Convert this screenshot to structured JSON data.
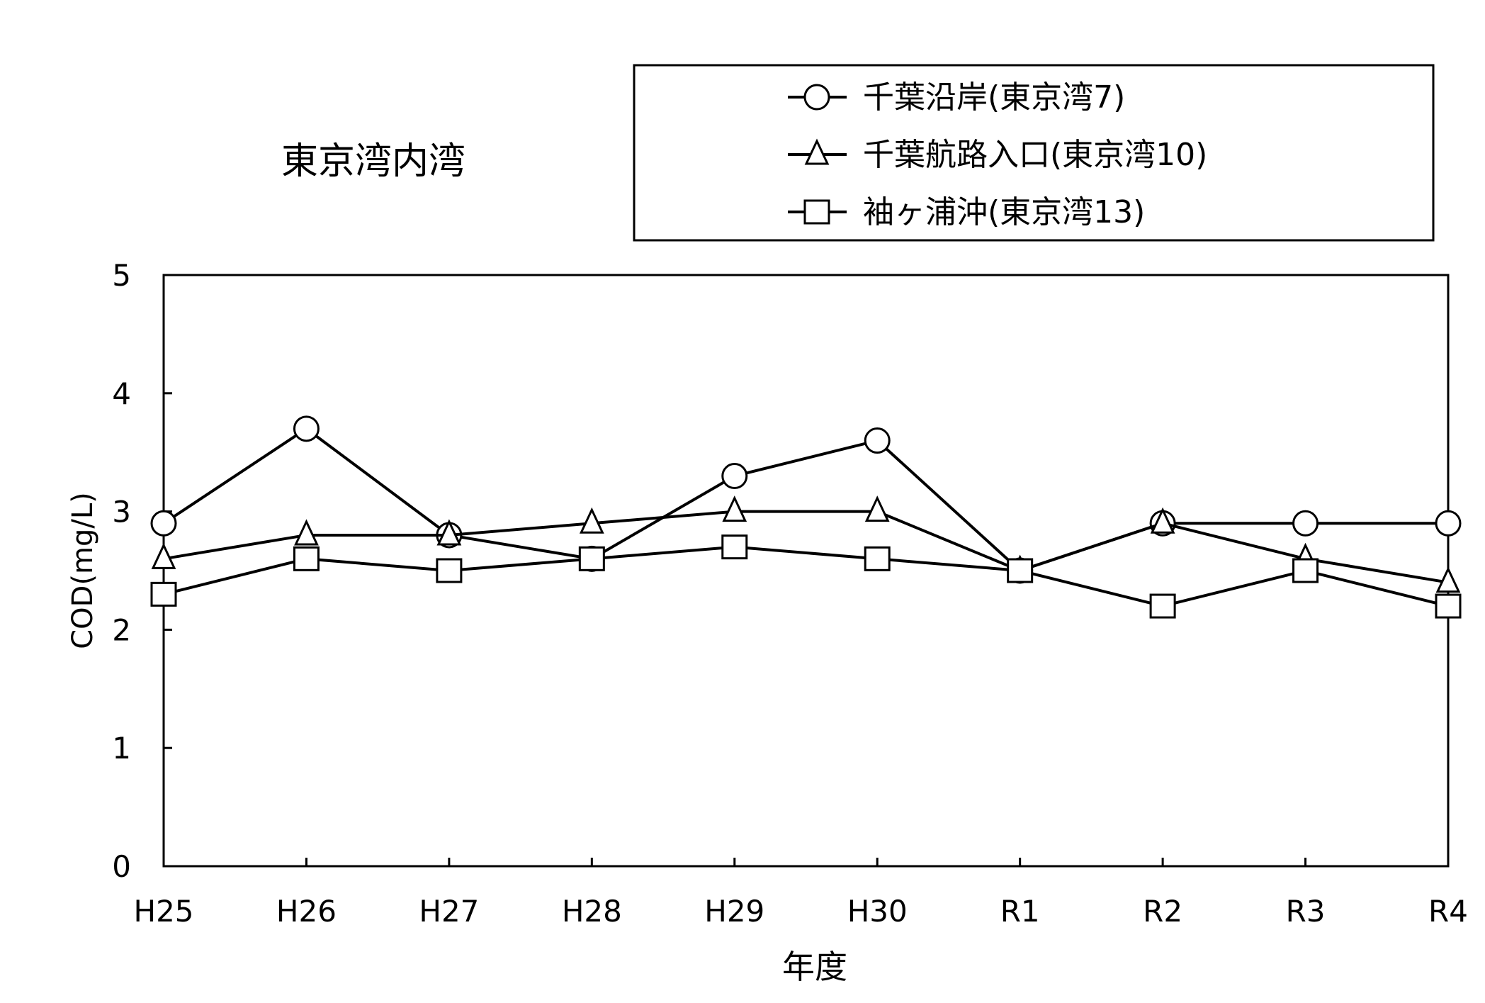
{
  "chart_data": {
    "type": "line",
    "title": "東京湾内湾",
    "xlabel": "年度",
    "ylabel": "COD(mg/L)",
    "categories": [
      "H25",
      "H26",
      "H27",
      "H28",
      "H29",
      "H30",
      "R1",
      "R2",
      "R3",
      "R4"
    ],
    "ylim": [
      0,
      5
    ],
    "yticks": [
      0,
      1,
      2,
      3,
      4,
      5
    ],
    "grid": false,
    "legend_position": "top-right",
    "series": [
      {
        "name": "千葉沿岸(東京湾7)",
        "marker": "circle",
        "values": [
          2.9,
          3.7,
          2.8,
          2.6,
          3.3,
          3.6,
          2.5,
          2.9,
          2.9,
          2.9
        ]
      },
      {
        "name": "千葉航路入口(東京湾10)",
        "marker": "triangle",
        "values": [
          2.6,
          2.8,
          2.8,
          2.9,
          3.0,
          3.0,
          2.5,
          2.9,
          2.6,
          2.4
        ]
      },
      {
        "name": "袖ヶ浦沖(東京湾13)",
        "marker": "square",
        "values": [
          2.3,
          2.6,
          2.5,
          2.6,
          2.7,
          2.6,
          2.5,
          2.2,
          2.5,
          2.2
        ]
      }
    ],
    "colors": {
      "line": "#000000",
      "marker_fill": "#ffffff"
    }
  }
}
